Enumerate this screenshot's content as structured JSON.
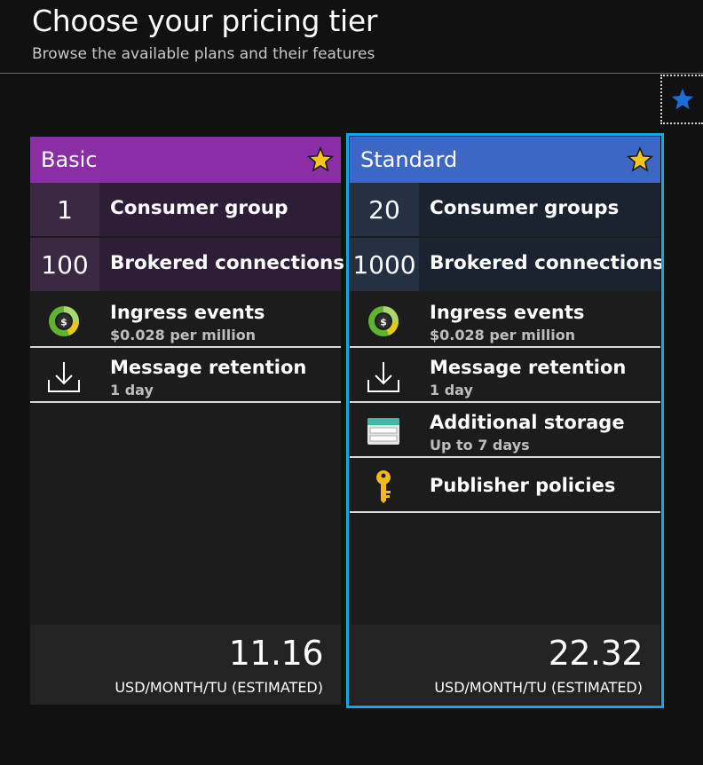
{
  "header": {
    "title": "Choose your pricing tier",
    "subtitle": "Browse the available plans and their features"
  },
  "colors": {
    "basic_header": "#8a2da6",
    "standard_header": "#3c67c5",
    "selected_border": "#14a7e6",
    "favorite_star": "#f5c518"
  },
  "icons": {
    "favorite": "star-icon",
    "ingress": "dollar-meter-icon",
    "retention": "download-tray-icon",
    "storage": "storage-icon",
    "publisher": "key-icon"
  },
  "tiers": [
    {
      "name": "Basic",
      "selected": false,
      "quotas": [
        {
          "value": "1",
          "label": "Consumer group"
        },
        {
          "value": "100",
          "label": "Brokered connections"
        }
      ],
      "features": [
        {
          "title": "Ingress events",
          "subtitle": "$0.028 per million"
        },
        {
          "title": "Message retention",
          "subtitle": "1 day"
        }
      ],
      "price": "11.16",
      "price_unit": "USD/MONTH/TU (ESTIMATED)"
    },
    {
      "name": "Standard",
      "selected": true,
      "quotas": [
        {
          "value": "20",
          "label": "Consumer groups"
        },
        {
          "value": "1000",
          "label": "Brokered connections"
        }
      ],
      "features": [
        {
          "title": "Ingress events",
          "subtitle": "$0.028 per million"
        },
        {
          "title": "Message retention",
          "subtitle": "1 day"
        },
        {
          "title": "Additional storage",
          "subtitle": "Up to 7 days"
        },
        {
          "title": "Publisher policies",
          "subtitle": ""
        }
      ],
      "price": "22.32",
      "price_unit": "USD/MONTH/TU (ESTIMATED)"
    }
  ]
}
